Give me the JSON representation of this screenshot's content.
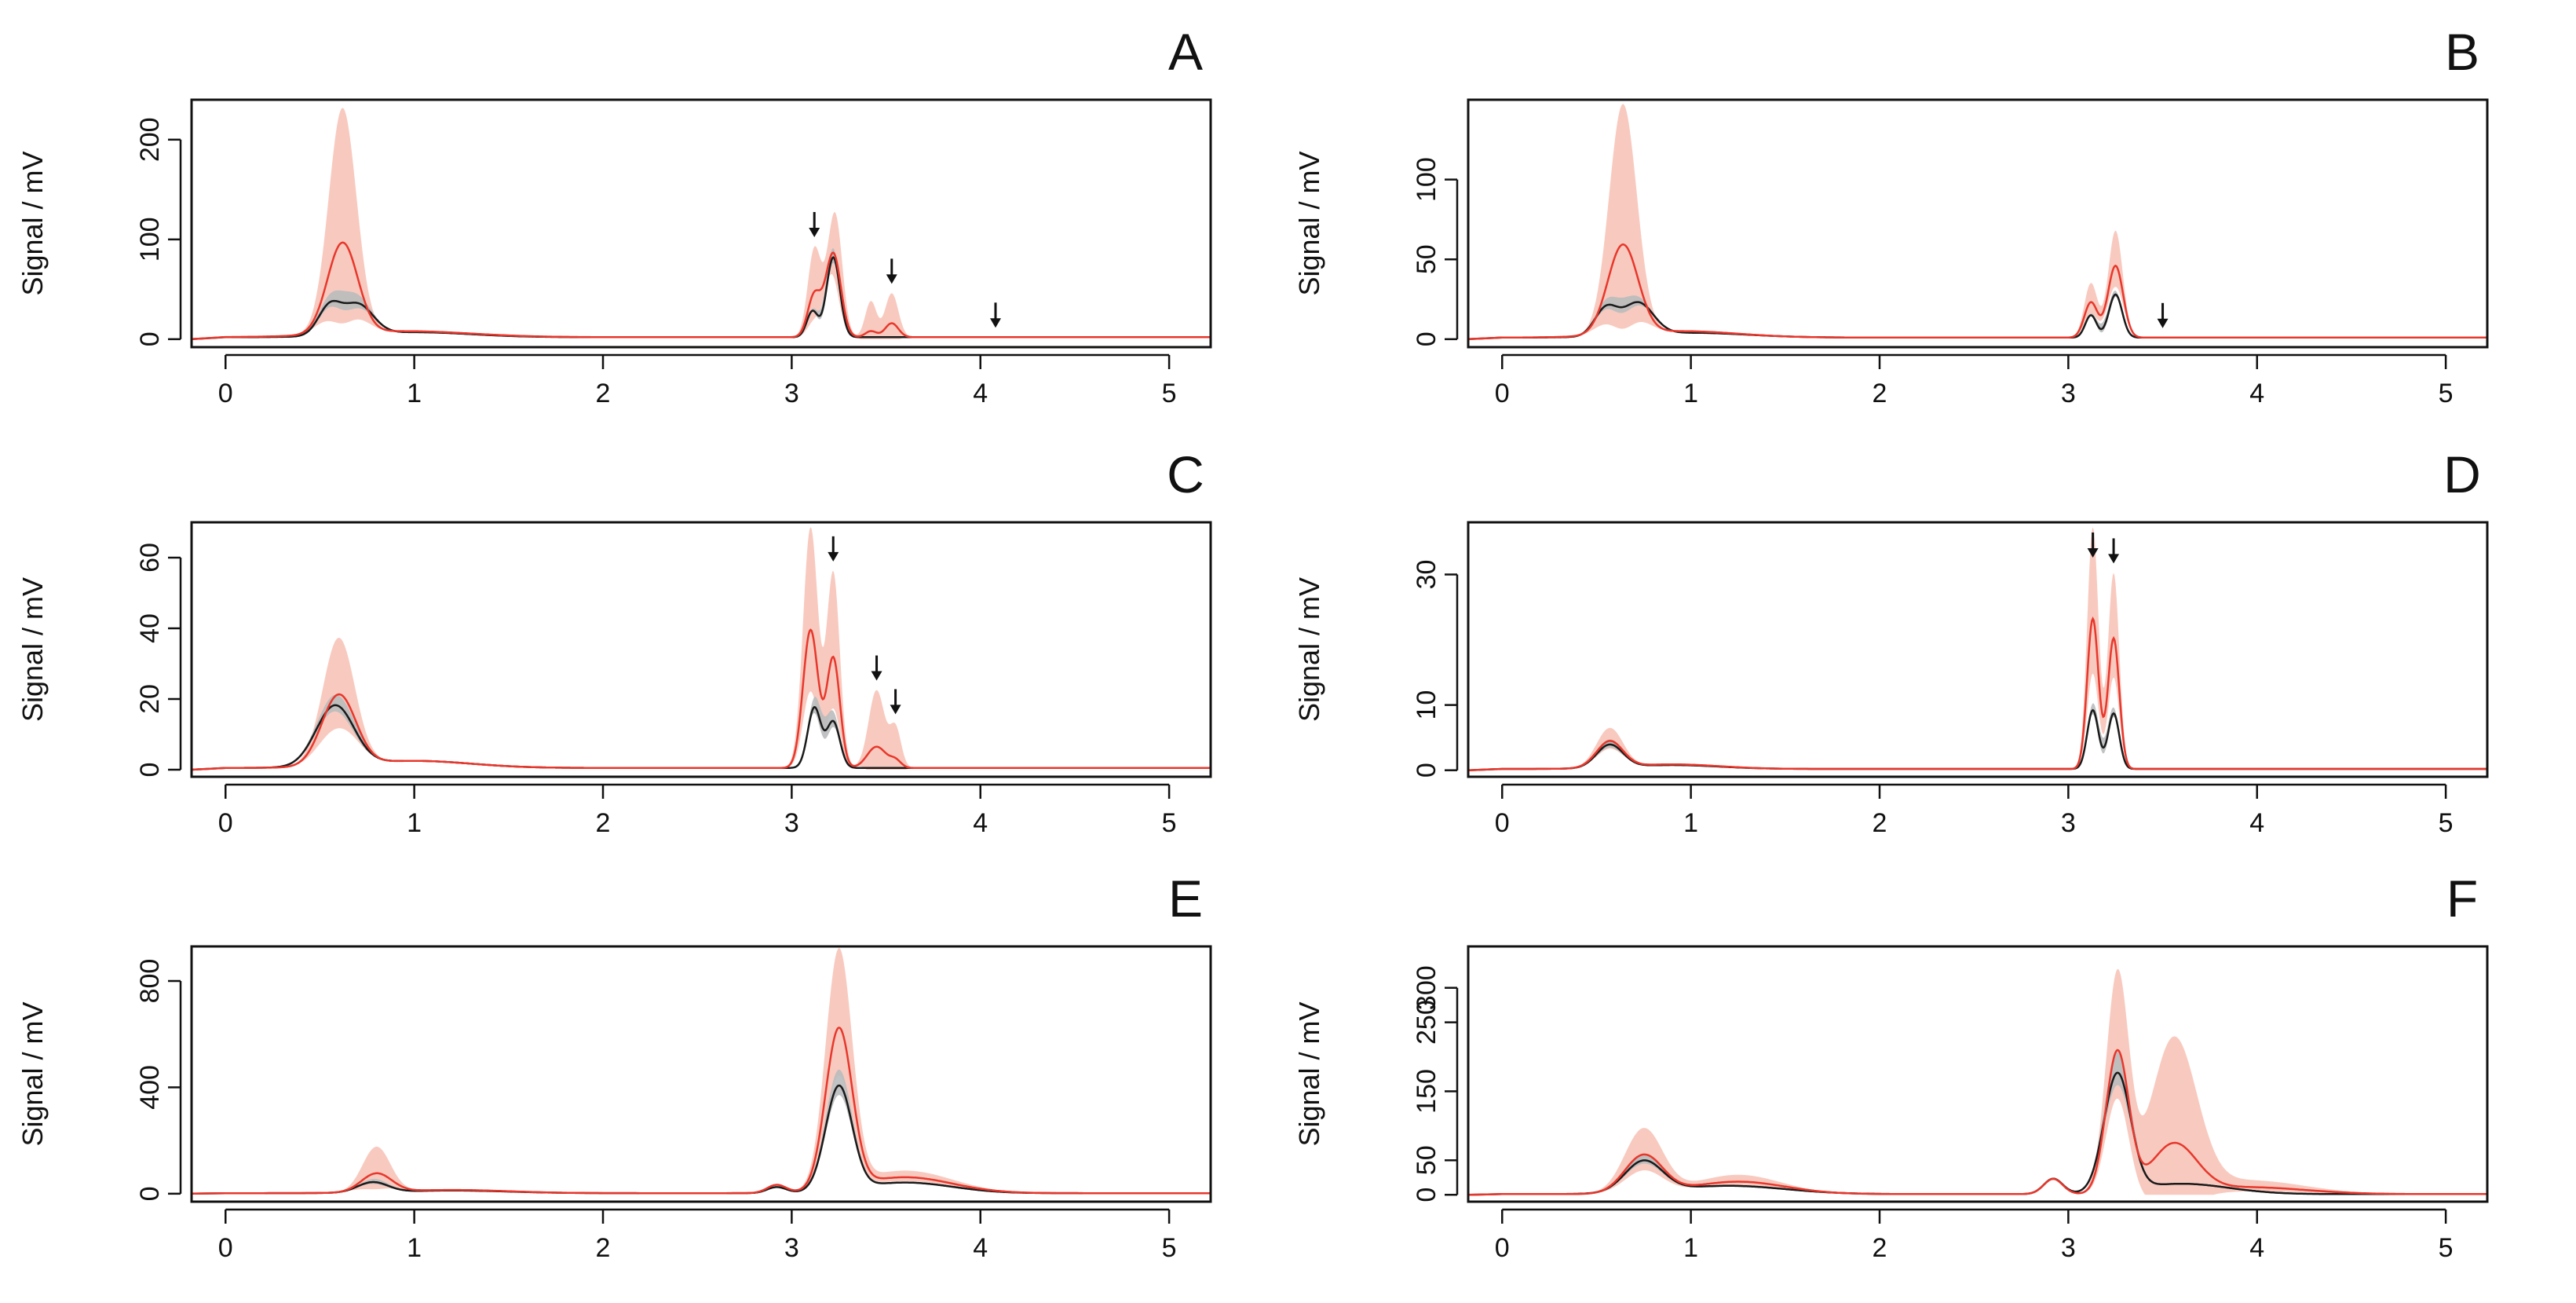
{
  "figure": {
    "description_free": true,
    "colors": {
      "treated_line": "#e8372c",
      "treated_band": "#f7c4b8",
      "control_line": "#1a1a1a",
      "control_band": "#b9bbbd",
      "axis": "#111111"
    }
  },
  "chart_data": [
    {
      "panel": "A",
      "type": "line",
      "ylabel": "Signal / mV",
      "xlabel": "",
      "xlim": [
        -0.18,
        5.22
      ],
      "ylim": [
        -8,
        240
      ],
      "xticks": [
        0,
        1,
        2,
        3,
        4,
        5
      ],
      "yticks": [
        0,
        100,
        200
      ],
      "series": [
        {
          "name": "red",
          "baseline": 2,
          "peaks": [
            [
              0.62,
              0.08,
              91
            ],
            [
              0.95,
              0.35,
              6
            ],
            [
              3.12,
              0.035,
              42
            ],
            [
              3.22,
              0.04,
              84
            ],
            [
              3.42,
              0.03,
              6
            ],
            [
              3.53,
              0.035,
              14
            ]
          ],
          "band": [
            [
              0.62,
              0.07,
              135
            ],
            [
              3.12,
              0.035,
              45
            ],
            [
              3.24,
              0.035,
              45
            ],
            [
              3.42,
              0.03,
              30
            ],
            [
              3.53,
              0.035,
              30
            ]
          ]
        },
        {
          "name": "black",
          "baseline": 2,
          "peaks": [
            [
              0.55,
              0.06,
              28
            ],
            [
              0.7,
              0.08,
              30
            ],
            [
              1.0,
              0.3,
              5
            ],
            [
              3.11,
              0.03,
              26
            ],
            [
              3.22,
              0.035,
              80
            ]
          ],
          "band": [
            [
              0.63,
              0.09,
              12
            ],
            [
              3.2,
              0.05,
              10
            ]
          ]
        }
      ],
      "arrows_x": [
        3.12,
        3.53,
        4.08
      ]
    },
    {
      "panel": "B",
      "type": "line",
      "ylabel": "Signal / mV",
      "xlabel": "",
      "xlim": [
        -0.18,
        5.22
      ],
      "ylim": [
        -5,
        150
      ],
      "xticks": [
        0,
        1,
        2,
        3,
        4,
        5
      ],
      "yticks": [
        0,
        50,
        100
      ],
      "series": [
        {
          "name": "red",
          "baseline": 1,
          "peaks": [
            [
              0.64,
              0.08,
              56
            ],
            [
              0.95,
              0.3,
              4
            ],
            [
              3.12,
              0.035,
              22
            ],
            [
              3.25,
              0.04,
              45
            ]
          ],
          "band": [
            [
              0.64,
              0.07,
              88
            ],
            [
              3.12,
              0.035,
              12
            ],
            [
              3.25,
              0.035,
              22
            ]
          ]
        },
        {
          "name": "black",
          "baseline": 1,
          "peaks": [
            [
              0.55,
              0.06,
              17
            ],
            [
              0.72,
              0.08,
              20
            ],
            [
              1.0,
              0.3,
              3
            ],
            [
              3.12,
              0.03,
              14
            ],
            [
              3.25,
              0.035,
              27
            ]
          ],
          "band": [
            [
              0.63,
              0.09,
              6
            ],
            [
              3.2,
              0.05,
              4
            ]
          ]
        }
      ],
      "arrows_x": [
        3.5
      ]
    },
    {
      "panel": "C",
      "type": "line",
      "ylabel": "Signal / mV",
      "xlabel": "",
      "xlim": [
        -0.18,
        5.22
      ],
      "ylim": [
        -2,
        70
      ],
      "xticks": [
        0,
        1,
        2,
        3,
        4,
        5
      ],
      "yticks": [
        0,
        20,
        40,
        60
      ],
      "series": [
        {
          "name": "red",
          "baseline": 0.5,
          "peaks": [
            [
              0.6,
              0.09,
              20
            ],
            [
              1.0,
              0.3,
              2
            ],
            [
              3.1,
              0.04,
              39
            ],
            [
              3.22,
              0.035,
              31
            ],
            [
              3.45,
              0.05,
              6
            ],
            [
              3.55,
              0.03,
              2
            ]
          ],
          "band": [
            [
              0.6,
              0.08,
              16
            ],
            [
              3.1,
              0.04,
              29
            ],
            [
              3.22,
              0.035,
              24
            ],
            [
              3.45,
              0.04,
              16
            ],
            [
              3.55,
              0.03,
              9
            ]
          ]
        },
        {
          "name": "black",
          "baseline": 0.5,
          "peaks": [
            [
              0.58,
              0.1,
              17
            ],
            [
              1.0,
              0.3,
              2
            ],
            [
              3.12,
              0.035,
              17
            ],
            [
              3.22,
              0.035,
              13
            ]
          ],
          "band": [
            [
              0.6,
              0.1,
              3
            ],
            [
              3.17,
              0.06,
              4
            ]
          ]
        }
      ],
      "arrows_x": [
        3.22,
        3.45,
        3.55
      ]
    },
    {
      "panel": "D",
      "type": "line",
      "ylabel": "Signal / mV",
      "xlabel": "",
      "xlim": [
        -0.18,
        5.22
      ],
      "ylim": [
        -1,
        38
      ],
      "xticks": [
        0,
        1,
        2,
        3,
        4,
        5
      ],
      "yticks": [
        0,
        10,
        30
      ],
      "series": [
        {
          "name": "red",
          "baseline": 0.2,
          "peaks": [
            [
              0.57,
              0.07,
              4
            ],
            [
              0.9,
              0.25,
              0.7
            ],
            [
              3.13,
              0.03,
              23
            ],
            [
              3.24,
              0.03,
              20
            ]
          ],
          "band": [
            [
              0.57,
              0.07,
              2
            ],
            [
              3.13,
              0.03,
              14
            ],
            [
              3.24,
              0.03,
              10
            ]
          ]
        },
        {
          "name": "black",
          "baseline": 0.2,
          "peaks": [
            [
              0.57,
              0.07,
              3.5
            ],
            [
              0.9,
              0.25,
              0.6
            ],
            [
              3.13,
              0.03,
              9
            ],
            [
              3.24,
              0.03,
              8.5
            ]
          ],
          "band": [
            [
              0.57,
              0.07,
              0.8
            ],
            [
              3.18,
              0.06,
              1.5
            ]
          ]
        }
      ],
      "arrows_x": [
        3.13,
        3.24
      ]
    },
    {
      "panel": "E",
      "type": "line",
      "ylabel": "Signal / mV",
      "xlabel": "",
      "xlim": [
        -0.18,
        5.22
      ],
      "ylim": [
        -30,
        930
      ],
      "xticks": [
        0,
        1,
        2,
        3,
        4,
        5
      ],
      "yticks": [
        0,
        400,
        800
      ],
      "series": [
        {
          "name": "red",
          "baseline": 2,
          "peaks": [
            [
              0.8,
              0.08,
              70
            ],
            [
              1.2,
              0.3,
              12
            ],
            [
              2.92,
              0.05,
              30
            ],
            [
              3.25,
              0.07,
              600
            ],
            [
              3.6,
              0.25,
              60
            ]
          ],
          "band": [
            [
              0.8,
              0.07,
              100
            ],
            [
              3.25,
              0.07,
              290
            ],
            [
              3.6,
              0.25,
              25
            ]
          ]
        },
        {
          "name": "black",
          "baseline": 2,
          "peaks": [
            [
              0.78,
              0.08,
              38
            ],
            [
              1.2,
              0.3,
              10
            ],
            [
              2.92,
              0.05,
              22
            ],
            [
              3.25,
              0.07,
              390
            ],
            [
              3.6,
              0.25,
              40
            ]
          ],
          "band": [
            [
              0.8,
              0.07,
              12
            ],
            [
              3.25,
              0.07,
              60
            ]
          ]
        }
      ],
      "arrows_x": []
    },
    {
      "panel": "F",
      "type": "line",
      "ylabel": "Signal / mV",
      "xlabel": "",
      "xlim": [
        -0.18,
        5.22
      ],
      "ylim": [
        -10,
        360
      ],
      "xticks": [
        0,
        1,
        2,
        3,
        4,
        5
      ],
      "yticks": [
        0,
        50,
        150,
        250,
        300
      ],
      "series": [
        {
          "name": "red",
          "baseline": 1,
          "peaks": [
            [
              0.75,
              0.1,
              55
            ],
            [
              1.25,
              0.25,
              18
            ],
            [
              2.92,
              0.05,
              22
            ],
            [
              3.26,
              0.06,
              205
            ],
            [
              3.56,
              0.12,
              70
            ],
            [
              3.95,
              0.3,
              10
            ]
          ],
          "band": [
            [
              0.75,
              0.1,
              38
            ],
            [
              1.25,
              0.2,
              10
            ],
            [
              3.26,
              0.06,
              110
            ],
            [
              3.56,
              0.12,
              150
            ],
            [
              3.95,
              0.3,
              10
            ]
          ]
        },
        {
          "name": "black",
          "baseline": 1,
          "peaks": [
            [
              0.75,
              0.1,
              45
            ],
            [
              1.2,
              0.3,
              12
            ],
            [
              2.92,
              0.05,
              22
            ],
            [
              3.26,
              0.07,
              170
            ],
            [
              3.6,
              0.25,
              15
            ]
          ],
          "band": [
            [
              0.75,
              0.1,
              8
            ],
            [
              3.26,
              0.07,
              30
            ]
          ]
        }
      ],
      "arrows_x": []
    }
  ]
}
